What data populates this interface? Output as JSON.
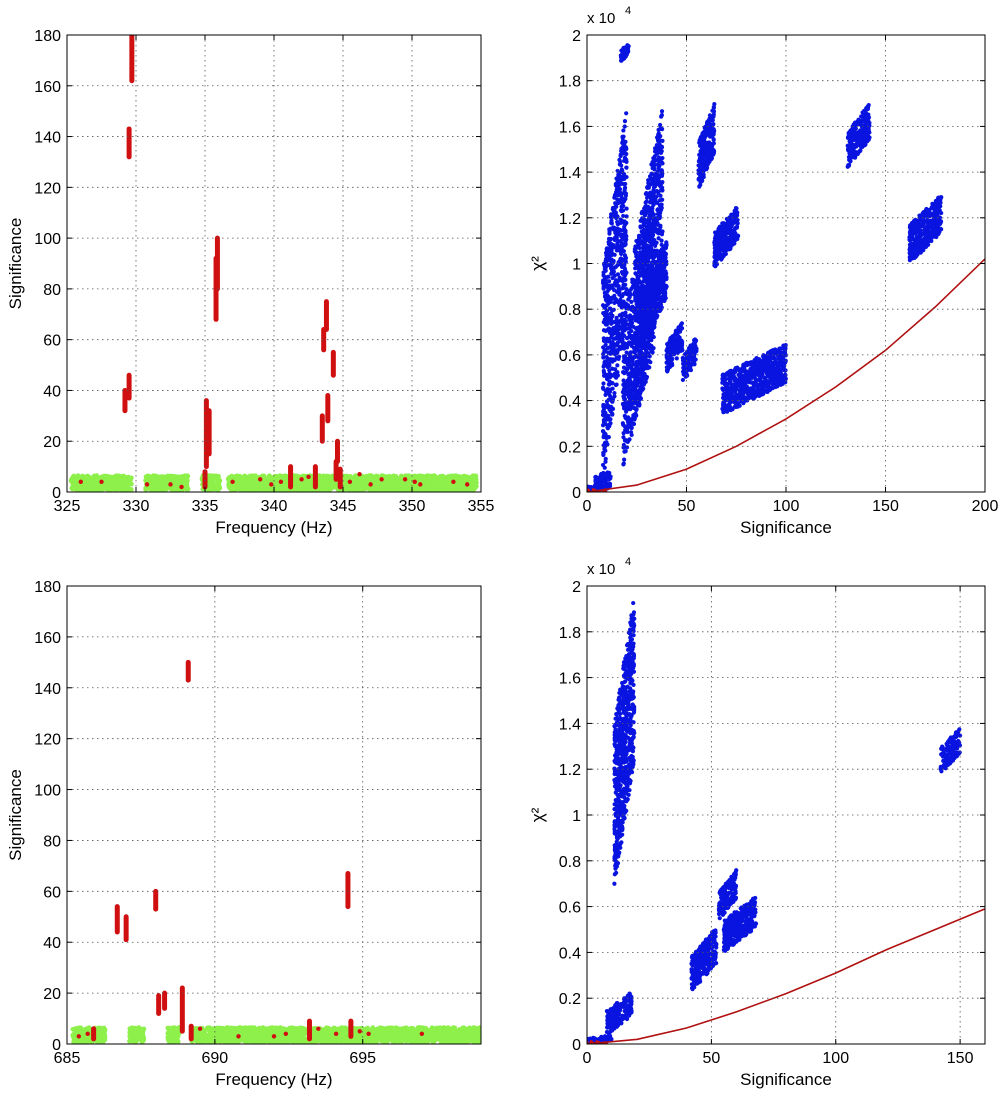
{
  "chart_data": [
    {
      "type": "scatter",
      "xlabel": "Frequency (Hz)",
      "ylabel": "Significance",
      "xlim": [
        325,
        355
      ],
      "ylim": [
        0,
        180
      ],
      "xticks": [
        "325",
        "330",
        "335",
        "340",
        "345",
        "350",
        "355"
      ],
      "yticks": [
        "0",
        "20",
        "40",
        "60",
        "80",
        "100",
        "120",
        "140",
        "160",
        "180"
      ],
      "grid": true,
      "colors": {
        "background_band": "#8ef04a",
        "candidates": "#d01010"
      },
      "background_band": {
        "x_range": [
          325.3,
          354.7
        ],
        "y_range": [
          0.5,
          6.5
        ],
        "gaps": [
          [
            329.7,
            330.7
          ],
          [
            333.8,
            334.8
          ],
          [
            336.1,
            336.7
          ]
        ]
      },
      "series": [
        {
          "color": "#d01010",
          "x": [
            329.2,
            329.5,
            329.5,
            329.7,
            335.0,
            335.1,
            335.3,
            335.8,
            335.9,
            341.2,
            343.0,
            343.5,
            343.6,
            343.8,
            343.9,
            344.3,
            344.5,
            344.6,
            344.8
          ],
          "y_min": [
            32,
            37,
            132,
            162,
            2,
            10,
            15,
            68,
            80,
            2,
            2,
            20,
            56,
            64,
            28,
            46,
            5,
            12,
            2
          ],
          "y_max": [
            40,
            46,
            143,
            180,
            8,
            36,
            32,
            92,
            100,
            10,
            10,
            30,
            64,
            75,
            38,
            55,
            12,
            20,
            9
          ]
        }
      ],
      "scattered_points": {
        "x": [
          326,
          327.5,
          330.8,
          332.5,
          333.3,
          337,
          339,
          339.8,
          340.5,
          342,
          342.5,
          345.5,
          346.2,
          347,
          347.8,
          349.5,
          350.2,
          350.6,
          353,
          354
        ],
        "y": [
          4,
          4,
          3,
          3,
          2,
          4,
          5,
          3,
          4,
          5,
          6,
          4,
          7,
          3,
          5,
          5,
          4,
          3,
          4,
          3
        ]
      }
    },
    {
      "type": "scatter",
      "xlabel": "Significance",
      "ylabel": "χ²",
      "y_multiplier": "x 10",
      "y_multiplier_exp": "4",
      "xlim": [
        0,
        200
      ],
      "ylim": [
        0,
        2
      ],
      "xticks": [
        "0",
        "50",
        "100",
        "150",
        "200"
      ],
      "yticks": [
        "0",
        "0.2",
        "0.4",
        "0.6",
        "0.8",
        "1",
        "1.2",
        "1.4",
        "1.6",
        "1.8",
        "2"
      ],
      "grid": true,
      "colors": {
        "points": "#0a14e0",
        "curve": "#b01010"
      },
      "clusters": [
        {
          "x": [
            0,
            12
          ],
          "y": [
            0,
            0.04
          ]
        },
        {
          "x": [
            4,
            12
          ],
          "y": [
            0.02,
            0.1
          ]
        },
        {
          "x": [
            8,
            20
          ],
          "y": [
            0.05,
            1.69
          ]
        },
        {
          "x": [
            17,
            21
          ],
          "y": [
            1.88,
            1.97
          ]
        },
        {
          "x": [
            18,
            34
          ],
          "y": [
            0.1,
            1.3
          ]
        },
        {
          "x": [
            24,
            38
          ],
          "y": [
            0.3,
            1.68
          ]
        },
        {
          "x": [
            30,
            40
          ],
          "y": [
            0.65,
            1.12
          ]
        },
        {
          "x": [
            40,
            48
          ],
          "y": [
            0.52,
            0.75
          ]
        },
        {
          "x": [
            48,
            55
          ],
          "y": [
            0.48,
            0.68
          ]
        },
        {
          "x": [
            56,
            64
          ],
          "y": [
            1.32,
            1.7
          ]
        },
        {
          "x": [
            64,
            76
          ],
          "y": [
            0.98,
            1.26
          ]
        },
        {
          "x": [
            68,
            100
          ],
          "y": [
            0.34,
            0.65
          ]
        },
        {
          "x": [
            131,
            142
          ],
          "y": [
            1.42,
            1.7
          ]
        },
        {
          "x": [
            162,
            178
          ],
          "y": [
            1.0,
            1.3
          ]
        }
      ],
      "curve": {
        "x": [
          0,
          25,
          50,
          75,
          100,
          125,
          150,
          175,
          200
        ],
        "y": [
          0,
          0.03,
          0.1,
          0.2,
          0.32,
          0.46,
          0.62,
          0.81,
          1.02
        ]
      }
    },
    {
      "type": "scatter",
      "xlabel": "Frequency (Hz)",
      "ylabel": "Significance",
      "xlim": [
        685,
        699
      ],
      "ylim": [
        0,
        180
      ],
      "xticks": [
        "685",
        "690",
        "695"
      ],
      "yticks": [
        "0",
        "20",
        "40",
        "60",
        "80",
        "100",
        "120",
        "140",
        "160",
        "180"
      ],
      "grid": true,
      "colors": {
        "background_band": "#8ef04a",
        "candidates": "#d01010"
      },
      "background_band": {
        "x_range": [
          685.2,
          699
        ],
        "y_range": [
          0.5,
          6.5
        ],
        "gaps": [
          [
            686.3,
            687.1
          ],
          [
            687.6,
            688.4
          ],
          [
            688.8,
            689.2
          ]
        ]
      },
      "series": [
        {
          "color": "#d01010",
          "x": [
            685.9,
            686.7,
            687.0,
            688.0,
            688.1,
            688.3,
            688.9,
            689.1,
            689.2,
            693.2,
            694.5,
            694.6
          ],
          "y_min": [
            2,
            44,
            41,
            53,
            12,
            14,
            5,
            143,
            2,
            2,
            54,
            3
          ],
          "y_max": [
            6,
            54,
            50,
            60,
            19,
            20,
            22,
            150,
            7,
            9,
            67,
            9
          ]
        }
      ],
      "scattered_points": {
        "x": [
          685.4,
          685.7,
          689.5,
          690.8,
          692.0,
          692.4,
          693.5,
          694.1,
          694.9,
          695.2,
          697.0
        ],
        "y": [
          3,
          4,
          6,
          3,
          3,
          4,
          6,
          4,
          5,
          4,
          4
        ]
      }
    },
    {
      "type": "scatter",
      "xlabel": "Significance",
      "ylabel": "χ²",
      "y_multiplier": "x 10",
      "y_multiplier_exp": "4",
      "xlim": [
        0,
        160
      ],
      "ylim": [
        0,
        2
      ],
      "xticks": [
        "0",
        "50",
        "100",
        "150"
      ],
      "yticks": [
        "0",
        "0.2",
        "0.4",
        "0.6",
        "0.8",
        "1",
        "1.2",
        "1.4",
        "1.6",
        "1.8",
        "2"
      ],
      "grid": true,
      "colors": {
        "points": "#0a14e0",
        "curve": "#b01010"
      },
      "clusters": [
        {
          "x": [
            0,
            10
          ],
          "y": [
            0,
            0.04
          ]
        },
        {
          "x": [
            8,
            18
          ],
          "y": [
            0.04,
            0.23
          ]
        },
        {
          "x": [
            11,
            19
          ],
          "y": [
            0.68,
            1.96
          ]
        },
        {
          "x": [
            42,
            52
          ],
          "y": [
            0.23,
            0.51
          ]
        },
        {
          "x": [
            53,
            60
          ],
          "y": [
            0.54,
            0.76
          ]
        },
        {
          "x": [
            55,
            68
          ],
          "y": [
            0.4,
            0.65
          ]
        },
        {
          "x": [
            142,
            150
          ],
          "y": [
            1.18,
            1.38
          ]
        }
      ],
      "curve": {
        "x": [
          0,
          20,
          40,
          60,
          80,
          100,
          120,
          140,
          160
        ],
        "y": [
          0,
          0.02,
          0.07,
          0.14,
          0.22,
          0.31,
          0.41,
          0.5,
          0.59
        ]
      }
    }
  ]
}
